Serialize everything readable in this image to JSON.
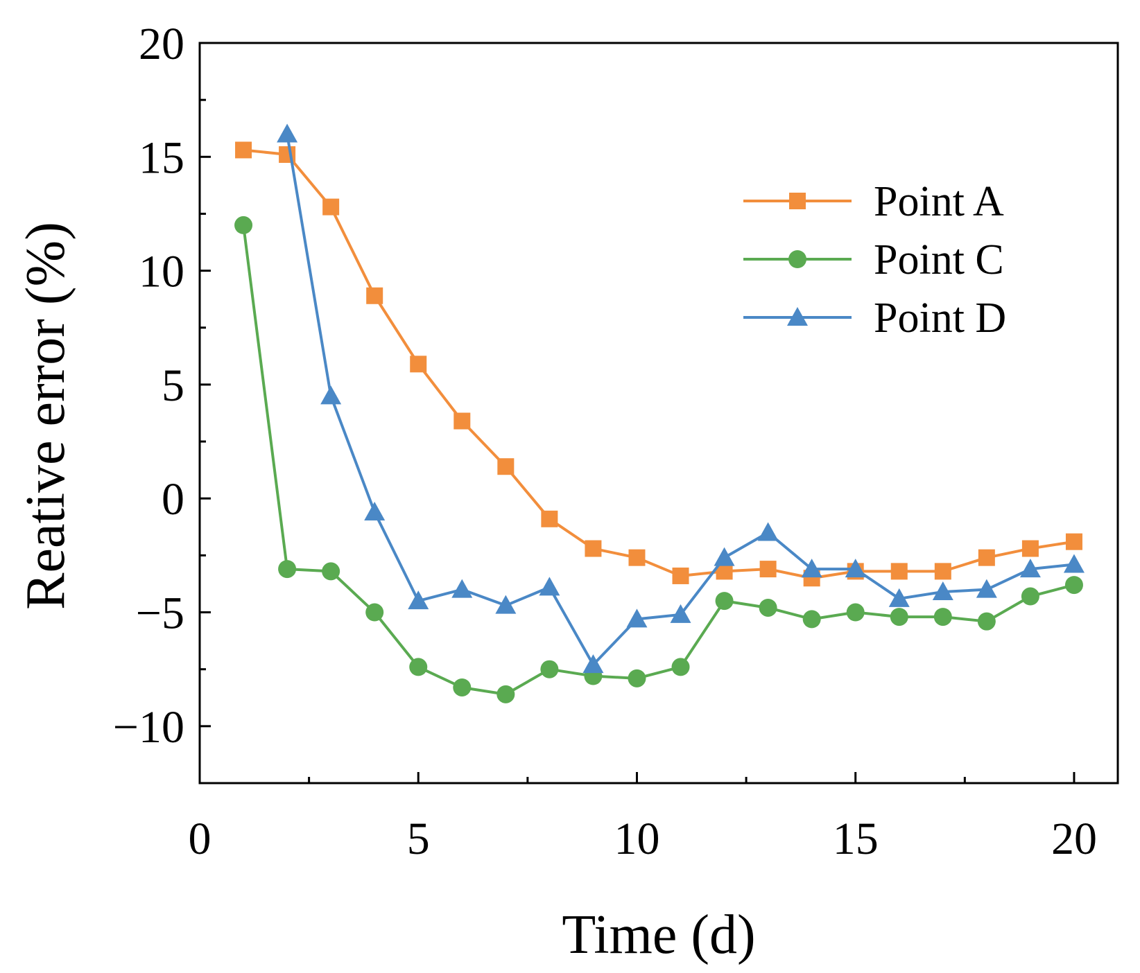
{
  "chart_data": {
    "type": "line",
    "title": "",
    "xlabel": "Time (d)",
    "ylabel": "Reative error (%)",
    "xlim": [
      0,
      21
    ],
    "ylim": [
      -12.5,
      20
    ],
    "xticks": [
      0,
      5,
      10,
      15,
      20
    ],
    "yticks": [
      -10,
      -5,
      0,
      5,
      10,
      15,
      20
    ],
    "xtick_labels": [
      "0",
      "5",
      "10",
      "15",
      "20"
    ],
    "ytick_labels": [
      "−10",
      "−5",
      "0",
      "5",
      "10",
      "15",
      "20"
    ],
    "grid": false,
    "legend_position": "top-right",
    "series": [
      {
        "name": "Point A",
        "color": "#F28E3C",
        "marker": "square",
        "x": [
          1,
          2,
          3,
          4,
          5,
          6,
          7,
          8,
          9,
          10,
          11,
          12,
          13,
          14,
          15,
          16,
          17,
          18,
          19,
          20
        ],
        "values": [
          15.3,
          15.1,
          12.8,
          8.9,
          5.9,
          3.4,
          1.4,
          -0.9,
          -2.2,
          -2.6,
          -3.4,
          -3.2,
          -3.1,
          -3.5,
          -3.2,
          -3.2,
          -3.2,
          -2.6,
          -2.2,
          -1.9
        ]
      },
      {
        "name": "Point C",
        "color": "#5AAA51",
        "marker": "circle",
        "x": [
          1,
          2,
          3,
          4,
          5,
          6,
          7,
          8,
          9,
          10,
          11,
          12,
          13,
          14,
          15,
          16,
          17,
          18,
          19,
          20
        ],
        "values": [
          12.0,
          -3.1,
          -3.2,
          -5.0,
          -7.4,
          -8.3,
          -8.6,
          -7.5,
          -7.8,
          -7.9,
          -7.4,
          -4.5,
          -4.8,
          -5.3,
          -5.0,
          -5.2,
          -5.2,
          -5.4,
          -4.3,
          -3.8
        ]
      },
      {
        "name": "Point D",
        "color": "#4A88C6",
        "marker": "triangle",
        "x": [
          2,
          3,
          4,
          5,
          6,
          7,
          8,
          9,
          10,
          11,
          12,
          13,
          14,
          15,
          16,
          17,
          18,
          19,
          20
        ],
        "values": [
          16.0,
          4.5,
          -0.6,
          -4.5,
          -4.0,
          -4.7,
          -3.9,
          -7.3,
          -5.3,
          -5.1,
          -2.6,
          -1.5,
          -3.1,
          -3.1,
          -4.4,
          -4.1,
          -4.0,
          -3.1,
          -2.9
        ]
      }
    ]
  }
}
